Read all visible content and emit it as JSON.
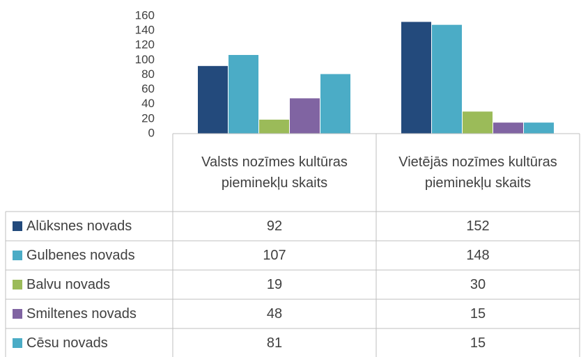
{
  "chart_data": {
    "type": "bar",
    "categories": [
      "Valsts nozīmes kultūras pieminekļu skaits",
      "Vietējās nozīmes kultūras pieminekļu skaits"
    ],
    "series": [
      {
        "name": "Alūksnes novads",
        "color": "#234a7c",
        "values": [
          92,
          152
        ]
      },
      {
        "name": "Gulbenes novads",
        "color": "#4bacc6",
        "values": [
          107,
          148
        ]
      },
      {
        "name": "Balvu novads",
        "color": "#9bbb59",
        "values": [
          19,
          30
        ]
      },
      {
        "name": "Smiltenes novads",
        "color": "#8064a2",
        "values": [
          48,
          15
        ]
      },
      {
        "name": "Cēsu novads",
        "color": "#4bacc6",
        "values": [
          81,
          15
        ]
      }
    ],
    "ylim": [
      0,
      160
    ],
    "yticks": [
      0,
      20,
      40,
      60,
      80,
      100,
      120,
      140,
      160
    ],
    "grid": false
  }
}
